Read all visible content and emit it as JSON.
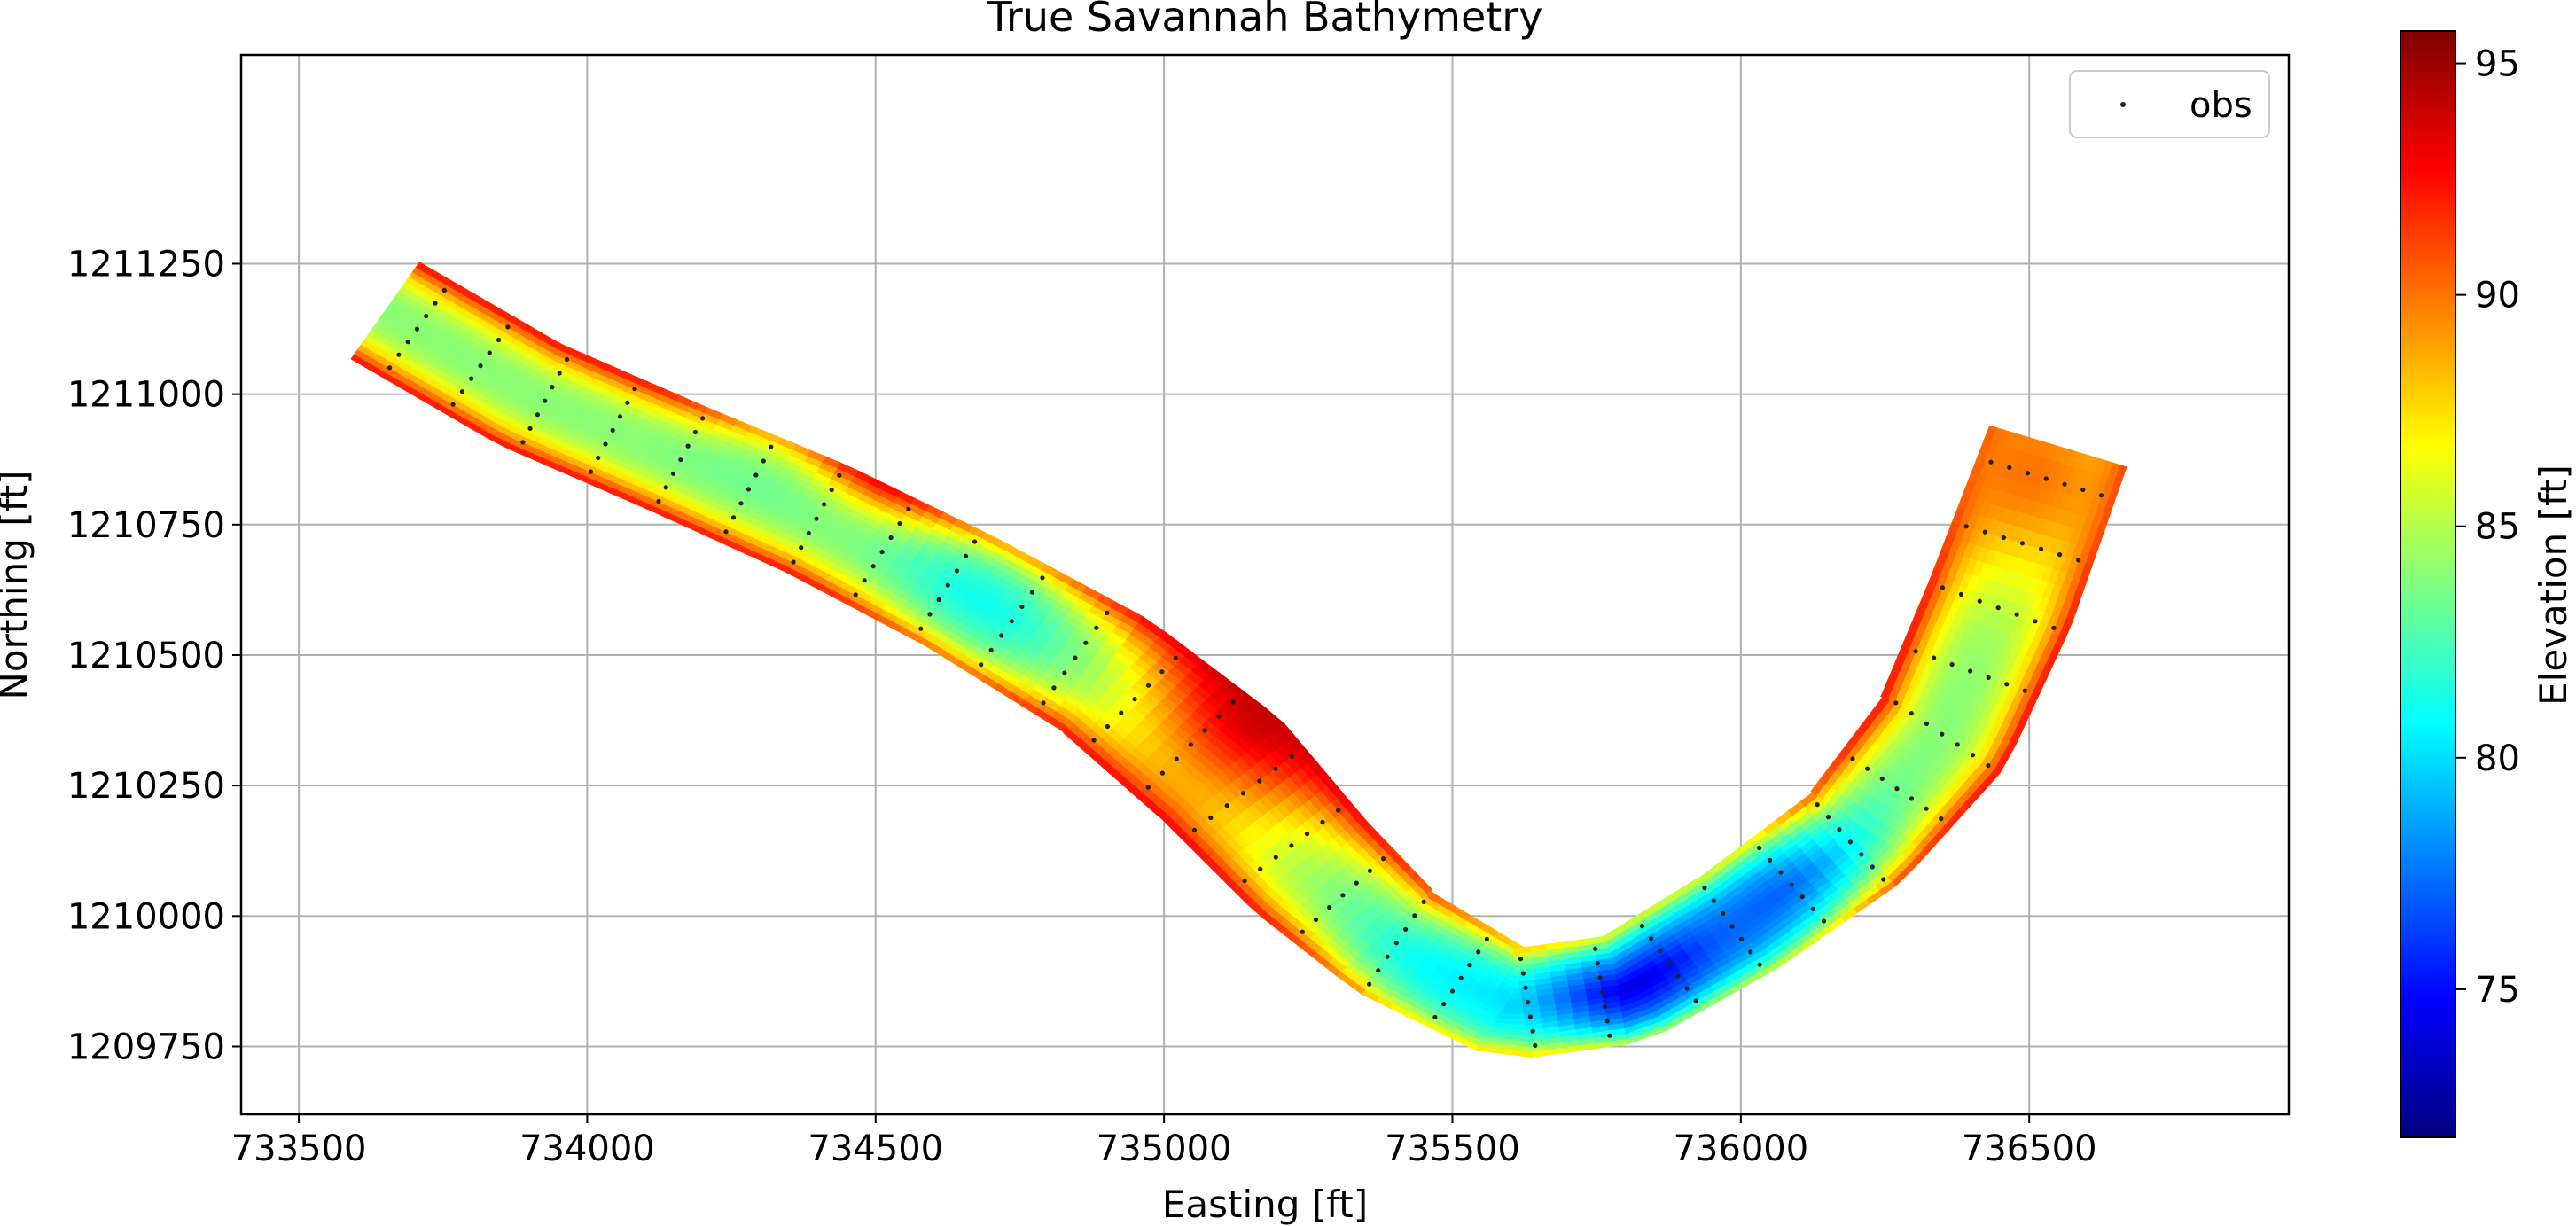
{
  "chart_data": {
    "type": "heatmap",
    "title": "True Savannah Bathymetry",
    "xlabel": "Easting [ft]",
    "ylabel": "Northing [ft]",
    "xlim": [
      733400,
      736950
    ],
    "ylim": [
      1209620,
      1211650
    ],
    "xticks": [
      733500,
      734000,
      734500,
      735000,
      735500,
      736000,
      736500
    ],
    "yticks": [
      1209750,
      1210000,
      1210250,
      1210500,
      1210750,
      1211000,
      1211250
    ],
    "grid": true,
    "legend": {
      "placement": "upper-right",
      "entries": [
        "obs"
      ]
    },
    "colormap": "jet",
    "colorbar": {
      "label": "Elevation [ft]",
      "range": [
        71.8,
        95.7
      ],
      "ticks": [
        75,
        80,
        85,
        90,
        95
      ]
    },
    "river": {
      "centerline": [
        [
          733650,
          1211160
        ],
        [
          733900,
          1211000
        ],
        [
          734150,
          1210880
        ],
        [
          734400,
          1210760
        ],
        [
          734650,
          1210620
        ],
        [
          734900,
          1210460
        ],
        [
          735100,
          1210280
        ],
        [
          735250,
          1210100
        ],
        [
          735400,
          1209950
        ],
        [
          735600,
          1209830
        ],
        [
          735800,
          1209860
        ],
        [
          736000,
          1209990
        ],
        [
          736200,
          1210150
        ],
        [
          736350,
          1210350
        ],
        [
          736450,
          1210600
        ],
        [
          736550,
          1210900
        ]
      ],
      "halfwidth": [
        110,
        110,
        110,
        115,
        120,
        130,
        140,
        130,
        115,
        105,
        105,
        110,
        115,
        125,
        130,
        125
      ],
      "edge_elevation": 93,
      "center_elevation": 84,
      "deep_zones": [
        {
          "x": 735850,
          "y": 1209840,
          "radius": 180,
          "elevation": 73
        },
        {
          "x": 736050,
          "y": 1210030,
          "radius": 140,
          "elevation": 77
        },
        {
          "x": 735450,
          "y": 1209800,
          "radius": 150,
          "elevation": 80
        },
        {
          "x": 734700,
          "y": 1210620,
          "radius": 130,
          "elevation": 81
        },
        {
          "x": 734350,
          "y": 1210960,
          "radius": 100,
          "elevation": 82
        }
      ],
      "high_zones": [
        {
          "x": 735180,
          "y": 1210400,
          "radius": 150,
          "elevation": 94
        },
        {
          "x": 734550,
          "y": 1210900,
          "radius": 70,
          "elevation": 94
        },
        {
          "x": 736500,
          "y": 1210850,
          "radius": 150,
          "elevation": 90
        }
      ]
    },
    "observations": {
      "name": "obs",
      "transects": 30,
      "points_per_transect": 7
    }
  }
}
